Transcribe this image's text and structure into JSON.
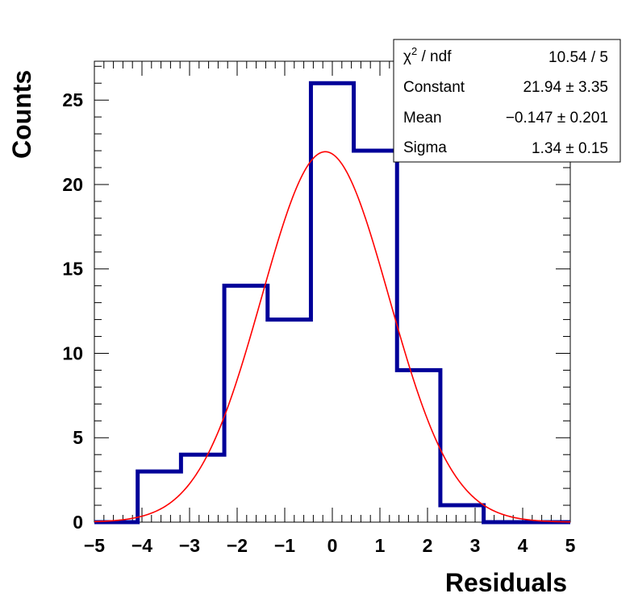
{
  "chart_data": {
    "type": "histogram",
    "xlabel": "Residuals",
    "ylabel": "Counts",
    "xlim": [
      -5,
      5
    ],
    "ylim": [
      0,
      27.3
    ],
    "x_ticks": [
      -5,
      -4,
      -3,
      -2,
      -1,
      0,
      1,
      2,
      3,
      4,
      5
    ],
    "x_tick_labels": [
      "−5",
      "−4",
      "−3",
      "−2",
      "−1",
      "0",
      "1",
      "2",
      "3",
      "4",
      "5"
    ],
    "y_ticks": [
      0,
      5,
      10,
      15,
      20,
      25
    ],
    "y_tick_labels": [
      "0",
      "5",
      "10",
      "15",
      "20",
      "25"
    ],
    "bin_edges": [
      -5.0,
      -4.09,
      -3.18,
      -2.27,
      -1.36,
      -0.45,
      0.45,
      1.36,
      2.27,
      3.18,
      4.09,
      5.0
    ],
    "counts": [
      0,
      3,
      4,
      14,
      12,
      26,
      22,
      9,
      1,
      0,
      0
    ],
    "histogram_color": "#000099",
    "fit": {
      "function": "gaus",
      "color": "#ff0000",
      "constant": 21.94,
      "mean": -0.147,
      "sigma": 1.34
    },
    "stats_box": {
      "rows": [
        {
          "label_base": "χ",
          "label_sup": "2",
          "label_rest": " / ndf",
          "value": "10.54 / 5"
        },
        {
          "label": "Constant",
          "value": "21.94 ± 3.35"
        },
        {
          "label": "Mean",
          "value": "−0.147 ± 0.201"
        },
        {
          "label": "Sigma",
          "value": "1.34 ± 0.15"
        }
      ]
    },
    "grid": false
  }
}
